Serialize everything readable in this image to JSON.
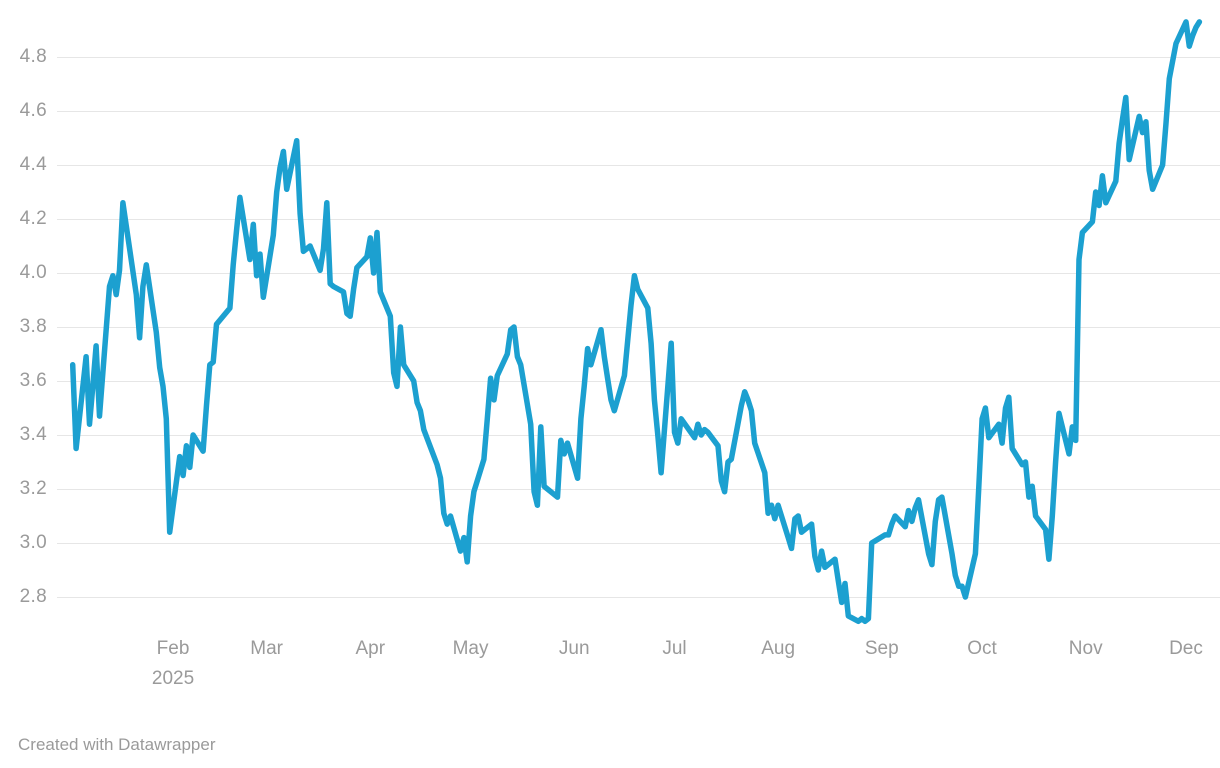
{
  "footer": {
    "text": "Created with Datawrapper"
  },
  "colors": {
    "line": "#1ca0d0",
    "grid": "#e6e6e6",
    "axis_label": "#9a9a9a",
    "footer_text": "#9a9a9a",
    "background": "#ffffff"
  },
  "chart_data": {
    "type": "line",
    "title": "",
    "xlabel": "",
    "ylabel": "",
    "legend": "none",
    "grid": "horizontal",
    "y_axis": {
      "min": 2.62,
      "max": 4.98,
      "tick_step": 0.2,
      "ticks": [
        4.8,
        4.6,
        4.4,
        4.2,
        4.0,
        3.8,
        3.6,
        3.4,
        3.2,
        3.0,
        2.8
      ]
    },
    "x_axis": {
      "start_date": "2025-01-02",
      "end_date": "2025-12-05",
      "ticks": [
        {
          "label": "Feb",
          "date": "2025-02-01"
        },
        {
          "label": "Mar",
          "date": "2025-03-01"
        },
        {
          "label": "Apr",
          "date": "2025-04-01"
        },
        {
          "label": "May",
          "date": "2025-05-01"
        },
        {
          "label": "Jun",
          "date": "2025-06-01"
        },
        {
          "label": "Jul",
          "date": "2025-07-01"
        },
        {
          "label": "Aug",
          "date": "2025-08-01"
        },
        {
          "label": "Sep",
          "date": "2025-09-01"
        },
        {
          "label": "Oct",
          "date": "2025-10-01"
        },
        {
          "label": "Nov",
          "date": "2025-11-01"
        },
        {
          "label": "Dec",
          "date": "2025-12-01"
        }
      ],
      "year_label": {
        "text": "2025",
        "date": "2025-02-01"
      }
    },
    "points": [
      [
        "2025-01-02",
        3.66
      ],
      [
        "2025-01-03",
        3.35
      ],
      [
        "2025-01-06",
        3.69
      ],
      [
        "2025-01-07",
        3.44
      ],
      [
        "2025-01-08",
        3.58
      ],
      [
        "2025-01-09",
        3.73
      ],
      [
        "2025-01-10",
        3.47
      ],
      [
        "2025-01-13",
        3.95
      ],
      [
        "2025-01-14",
        3.99
      ],
      [
        "2025-01-15",
        3.92
      ],
      [
        "2025-01-16",
        4.01
      ],
      [
        "2025-01-17",
        4.26
      ],
      [
        "2025-01-21",
        3.92
      ],
      [
        "2025-01-22",
        3.76
      ],
      [
        "2025-01-23",
        3.95
      ],
      [
        "2025-01-24",
        4.03
      ],
      [
        "2025-01-27",
        3.78
      ],
      [
        "2025-01-28",
        3.65
      ],
      [
        "2025-01-29",
        3.58
      ],
      [
        "2025-01-30",
        3.46
      ],
      [
        "2025-01-31",
        3.04
      ],
      [
        "2025-02-03",
        3.32
      ],
      [
        "2025-02-04",
        3.25
      ],
      [
        "2025-02-05",
        3.36
      ],
      [
        "2025-02-06",
        3.28
      ],
      [
        "2025-02-07",
        3.4
      ],
      [
        "2025-02-10",
        3.34
      ],
      [
        "2025-02-11",
        3.51
      ],
      [
        "2025-02-12",
        3.66
      ],
      [
        "2025-02-13",
        3.67
      ],
      [
        "2025-02-14",
        3.81
      ],
      [
        "2025-02-18",
        3.87
      ],
      [
        "2025-02-19",
        4.03
      ],
      [
        "2025-02-20",
        4.16
      ],
      [
        "2025-02-21",
        4.28
      ],
      [
        "2025-02-24",
        4.05
      ],
      [
        "2025-02-25",
        4.18
      ],
      [
        "2025-02-26",
        3.99
      ],
      [
        "2025-02-27",
        4.07
      ],
      [
        "2025-02-28",
        3.91
      ],
      [
        "2025-03-03",
        4.14
      ],
      [
        "2025-03-04",
        4.3
      ],
      [
        "2025-03-05",
        4.39
      ],
      [
        "2025-03-06",
        4.45
      ],
      [
        "2025-03-07",
        4.31
      ],
      [
        "2025-03-10",
        4.49
      ],
      [
        "2025-03-11",
        4.22
      ],
      [
        "2025-03-12",
        4.08
      ],
      [
        "2025-03-13",
        4.09
      ],
      [
        "2025-03-14",
        4.1
      ],
      [
        "2025-03-17",
        4.01
      ],
      [
        "2025-03-18",
        4.09
      ],
      [
        "2025-03-19",
        4.26
      ],
      [
        "2025-03-20",
        3.96
      ],
      [
        "2025-03-21",
        3.95
      ],
      [
        "2025-03-24",
        3.93
      ],
      [
        "2025-03-25",
        3.85
      ],
      [
        "2025-03-26",
        3.84
      ],
      [
        "2025-03-27",
        3.94
      ],
      [
        "2025-03-28",
        4.02
      ],
      [
        "2025-03-31",
        4.06
      ],
      [
        "2025-04-01",
        4.13
      ],
      [
        "2025-04-02",
        4.0
      ],
      [
        "2025-04-03",
        4.15
      ],
      [
        "2025-04-04",
        3.93
      ],
      [
        "2025-04-07",
        3.84
      ],
      [
        "2025-04-08",
        3.63
      ],
      [
        "2025-04-09",
        3.58
      ],
      [
        "2025-04-10",
        3.8
      ],
      [
        "2025-04-11",
        3.66
      ],
      [
        "2025-04-14",
        3.6
      ],
      [
        "2025-04-15",
        3.52
      ],
      [
        "2025-04-16",
        3.49
      ],
      [
        "2025-04-17",
        3.42
      ],
      [
        "2025-04-21",
        3.29
      ],
      [
        "2025-04-22",
        3.24
      ],
      [
        "2025-04-23",
        3.11
      ],
      [
        "2025-04-24",
        3.07
      ],
      [
        "2025-04-25",
        3.1
      ],
      [
        "2025-04-28",
        2.97
      ],
      [
        "2025-04-29",
        3.02
      ],
      [
        "2025-04-30",
        2.93
      ],
      [
        "2025-05-01",
        3.1
      ],
      [
        "2025-05-02",
        3.19
      ],
      [
        "2025-05-05",
        3.31
      ],
      [
        "2025-05-06",
        3.46
      ],
      [
        "2025-05-07",
        3.61
      ],
      [
        "2025-05-08",
        3.53
      ],
      [
        "2025-05-09",
        3.62
      ],
      [
        "2025-05-12",
        3.7
      ],
      [
        "2025-05-13",
        3.79
      ],
      [
        "2025-05-14",
        3.8
      ],
      [
        "2025-05-15",
        3.69
      ],
      [
        "2025-05-16",
        3.66
      ],
      [
        "2025-05-19",
        3.44
      ],
      [
        "2025-05-20",
        3.19
      ],
      [
        "2025-05-21",
        3.14
      ],
      [
        "2025-05-22",
        3.43
      ],
      [
        "2025-05-23",
        3.21
      ],
      [
        "2025-05-27",
        3.17
      ],
      [
        "2025-05-28",
        3.38
      ],
      [
        "2025-05-29",
        3.33
      ],
      [
        "2025-05-30",
        3.37
      ],
      [
        "2025-06-02",
        3.24
      ],
      [
        "2025-06-03",
        3.46
      ],
      [
        "2025-06-04",
        3.58
      ],
      [
        "2025-06-05",
        3.72
      ],
      [
        "2025-06-06",
        3.66
      ],
      [
        "2025-06-09",
        3.79
      ],
      [
        "2025-06-10",
        3.69
      ],
      [
        "2025-06-11",
        3.61
      ],
      [
        "2025-06-12",
        3.53
      ],
      [
        "2025-06-13",
        3.49
      ],
      [
        "2025-06-16",
        3.62
      ],
      [
        "2025-06-17",
        3.75
      ],
      [
        "2025-06-18",
        3.88
      ],
      [
        "2025-06-19",
        3.99
      ],
      [
        "2025-06-20",
        3.94
      ],
      [
        "2025-06-23",
        3.87
      ],
      [
        "2025-06-24",
        3.74
      ],
      [
        "2025-06-25",
        3.53
      ],
      [
        "2025-06-26",
        3.4
      ],
      [
        "2025-06-27",
        3.26
      ],
      [
        "2025-06-30",
        3.74
      ],
      [
        "2025-07-01",
        3.41
      ],
      [
        "2025-07-02",
        3.37
      ],
      [
        "2025-07-03",
        3.46
      ],
      [
        "2025-07-07",
        3.39
      ],
      [
        "2025-07-08",
        3.44
      ],
      [
        "2025-07-09",
        3.4
      ],
      [
        "2025-07-10",
        3.42
      ],
      [
        "2025-07-11",
        3.41
      ],
      [
        "2025-07-14",
        3.36
      ],
      [
        "2025-07-15",
        3.23
      ],
      [
        "2025-07-16",
        3.19
      ],
      [
        "2025-07-17",
        3.3
      ],
      [
        "2025-07-18",
        3.31
      ],
      [
        "2025-07-21",
        3.51
      ],
      [
        "2025-07-22",
        3.56
      ],
      [
        "2025-07-23",
        3.53
      ],
      [
        "2025-07-24",
        3.49
      ],
      [
        "2025-07-25",
        3.37
      ],
      [
        "2025-07-28",
        3.26
      ],
      [
        "2025-07-29",
        3.11
      ],
      [
        "2025-07-30",
        3.14
      ],
      [
        "2025-07-31",
        3.09
      ],
      [
        "2025-08-01",
        3.14
      ],
      [
        "2025-08-04",
        3.02
      ],
      [
        "2025-08-05",
        2.98
      ],
      [
        "2025-08-06",
        3.09
      ],
      [
        "2025-08-07",
        3.1
      ],
      [
        "2025-08-08",
        3.04
      ],
      [
        "2025-08-11",
        3.07
      ],
      [
        "2025-08-12",
        2.95
      ],
      [
        "2025-08-13",
        2.9
      ],
      [
        "2025-08-14",
        2.97
      ],
      [
        "2025-08-15",
        2.91
      ],
      [
        "2025-08-18",
        2.94
      ],
      [
        "2025-08-19",
        2.86
      ],
      [
        "2025-08-20",
        2.78
      ],
      [
        "2025-08-21",
        2.85
      ],
      [
        "2025-08-22",
        2.73
      ],
      [
        "2025-08-25",
        2.71
      ],
      [
        "2025-08-26",
        2.72
      ],
      [
        "2025-08-27",
        2.71
      ],
      [
        "2025-08-28",
        2.72
      ],
      [
        "2025-08-29",
        3.0
      ],
      [
        "2025-09-02",
        3.03
      ],
      [
        "2025-09-03",
        3.03
      ],
      [
        "2025-09-04",
        3.07
      ],
      [
        "2025-09-05",
        3.1
      ],
      [
        "2025-09-08",
        3.06
      ],
      [
        "2025-09-09",
        3.12
      ],
      [
        "2025-09-10",
        3.08
      ],
      [
        "2025-09-11",
        3.13
      ],
      [
        "2025-09-12",
        3.16
      ],
      [
        "2025-09-15",
        2.96
      ],
      [
        "2025-09-16",
        2.92
      ],
      [
        "2025-09-17",
        3.08
      ],
      [
        "2025-09-18",
        3.16
      ],
      [
        "2025-09-19",
        3.17
      ],
      [
        "2025-09-22",
        2.96
      ],
      [
        "2025-09-23",
        2.88
      ],
      [
        "2025-09-24",
        2.84
      ],
      [
        "2025-09-25",
        2.84
      ],
      [
        "2025-09-26",
        2.8
      ],
      [
        "2025-09-29",
        2.96
      ],
      [
        "2025-09-30",
        3.2
      ],
      [
        "2025-10-01",
        3.46
      ],
      [
        "2025-10-02",
        3.5
      ],
      [
        "2025-10-03",
        3.39
      ],
      [
        "2025-10-06",
        3.44
      ],
      [
        "2025-10-07",
        3.37
      ],
      [
        "2025-10-08",
        3.5
      ],
      [
        "2025-10-09",
        3.54
      ],
      [
        "2025-10-10",
        3.35
      ],
      [
        "2025-10-13",
        3.29
      ],
      [
        "2025-10-14",
        3.3
      ],
      [
        "2025-10-15",
        3.17
      ],
      [
        "2025-10-16",
        3.21
      ],
      [
        "2025-10-17",
        3.1
      ],
      [
        "2025-10-20",
        3.05
      ],
      [
        "2025-10-21",
        2.94
      ],
      [
        "2025-10-22",
        3.1
      ],
      [
        "2025-10-23",
        3.3
      ],
      [
        "2025-10-24",
        3.48
      ],
      [
        "2025-10-27",
        3.33
      ],
      [
        "2025-10-28",
        3.43
      ],
      [
        "2025-10-29",
        3.38
      ],
      [
        "2025-10-30",
        4.05
      ],
      [
        "2025-10-31",
        4.15
      ],
      [
        "2025-11-03",
        4.19
      ],
      [
        "2025-11-04",
        4.3
      ],
      [
        "2025-11-05",
        4.25
      ],
      [
        "2025-11-06",
        4.36
      ],
      [
        "2025-11-07",
        4.26
      ],
      [
        "2025-11-10",
        4.34
      ],
      [
        "2025-11-11",
        4.48
      ],
      [
        "2025-11-12",
        4.57
      ],
      [
        "2025-11-13",
        4.65
      ],
      [
        "2025-11-14",
        4.42
      ],
      [
        "2025-11-17",
        4.58
      ],
      [
        "2025-11-18",
        4.52
      ],
      [
        "2025-11-19",
        4.56
      ],
      [
        "2025-11-20",
        4.38
      ],
      [
        "2025-11-21",
        4.31
      ],
      [
        "2025-11-24",
        4.4
      ],
      [
        "2025-11-25",
        4.55
      ],
      [
        "2025-11-26",
        4.72
      ],
      [
        "2025-11-28",
        4.85
      ],
      [
        "2025-12-01",
        4.93
      ],
      [
        "2025-12-02",
        4.84
      ],
      [
        "2025-12-03",
        4.88
      ],
      [
        "2025-12-04",
        4.91
      ],
      [
        "2025-12-05",
        4.93
      ]
    ]
  }
}
